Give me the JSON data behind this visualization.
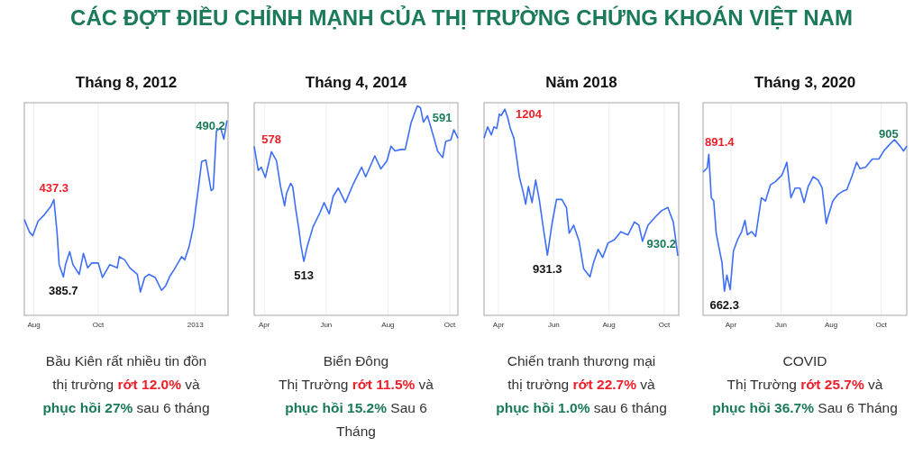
{
  "chart_data": [
    {
      "type": "other",
      "title": "CÁC ĐỢT ĐIỀU CHỈNH MẠNH CỦA THỊ TRƯỜNG CHỨNG KHOÁN VIỆT NAM"
    },
    {
      "type": "line",
      "title": "Tháng 8, 2012",
      "color": "#3d6ef5",
      "grid": "x",
      "tick_labels": "x",
      "xlim": [
        "2012-07-23",
        "2013-02-01"
      ],
      "ylim": [
        360,
        502
      ],
      "xticks": [
        {
          "value": "2012-08-01",
          "label": "Aug"
        },
        {
          "value": "2012-10-01",
          "label": "Oct"
        },
        {
          "value": "2013-01-01",
          "label": "2013"
        }
      ],
      "x": [
        "2012-07-23",
        "2012-07-28",
        "2012-07-31",
        "2012-08-05",
        "2012-08-11",
        "2012-08-17",
        "2012-08-20",
        "2012-08-23",
        "2012-08-25",
        "2012-08-29",
        "2012-08-31",
        "2012-09-04",
        "2012-09-07",
        "2012-09-13",
        "2012-09-17",
        "2012-09-21",
        "2012-09-25",
        "2012-10-01",
        "2012-10-05",
        "2012-10-12",
        "2012-10-19",
        "2012-10-21",
        "2012-10-26",
        "2012-10-31",
        "2012-11-07",
        "2012-11-10",
        "2012-11-14",
        "2012-11-18",
        "2012-11-24",
        "2012-11-30",
        "2012-12-04",
        "2012-12-08",
        "2012-12-12",
        "2012-12-19",
        "2012-12-22",
        "2012-12-26",
        "2012-12-30",
        "2013-01-04",
        "2013-01-07",
        "2013-01-11",
        "2013-01-16",
        "2013-01-18",
        "2013-01-21",
        "2013-01-25",
        "2013-01-28",
        "2013-01-31"
      ],
      "values": [
        424.0,
        415.4,
        413.2,
        422.9,
        427.2,
        432.6,
        437.3,
        415.4,
        393.9,
        385.7,
        393.9,
        402.5,
        393.9,
        387.4,
        401.4,
        391.7,
        395.0,
        395.0,
        385.3,
        393.9,
        391.7,
        399.2,
        397.1,
        391.7,
        387.4,
        375.6,
        385.3,
        387.4,
        385.3,
        376.7,
        379.9,
        386.3,
        390.6,
        399.2,
        397.1,
        405.7,
        418.6,
        445.5,
        462.7,
        463.7,
        443.3,
        444.4,
        483.1,
        485.2,
        477.7,
        490.2
      ],
      "value_labels": [
        null,
        null,
        null,
        null,
        null,
        null,
        "437.3",
        null,
        null,
        "385.7",
        null,
        null,
        null,
        null,
        null,
        null,
        null,
        null,
        null,
        null,
        null,
        null,
        null,
        null,
        null,
        null,
        null,
        null,
        null,
        null,
        null,
        null,
        null,
        null,
        null,
        null,
        null,
        null,
        null,
        null,
        null,
        null,
        null,
        null,
        null,
        "490.2"
      ],
      "annotations": [
        "Bầu Kiên rất nhiều tin đồn\nthị trường ",
        "rớt 12.0%",
        " và\n",
        "phục hồi 27%",
        " sau 6 tháng"
      ]
    },
    {
      "type": "line",
      "title": "Tháng 4, 2014",
      "color": "#3d6ef5",
      "grid": "x",
      "tick_labels": "x",
      "xlim": [
        "2014-03-22",
        "2014-10-09"
      ],
      "ylim": [
        481,
        607
      ],
      "xticks": [
        {
          "value": "2014-04-01",
          "label": "Apr"
        },
        {
          "value": "2014-06-01",
          "label": "Jun"
        },
        {
          "value": "2014-08-01",
          "label": "Aug"
        },
        {
          "value": "2014-10-01",
          "label": "Oct"
        }
      ],
      "x": [
        "2014-03-22",
        "2014-03-26",
        "2014-03-29",
        "2014-04-02",
        "2014-04-08",
        "2014-04-13",
        "2014-04-17",
        "2014-04-21",
        "2014-04-23",
        "2014-04-27",
        "2014-04-29",
        "2014-05-02",
        "2014-05-05",
        "2014-05-07",
        "2014-05-10",
        "2014-05-13",
        "2014-05-19",
        "2014-05-26",
        "2014-05-30",
        "2014-06-04",
        "2014-06-08",
        "2014-06-13",
        "2014-06-20",
        "2014-06-28",
        "2014-07-06",
        "2014-07-10",
        "2014-07-19",
        "2014-07-25",
        "2014-07-31",
        "2014-08-04",
        "2014-08-08",
        "2014-08-14",
        "2014-08-18",
        "2014-08-24",
        "2014-08-30",
        "2014-09-02",
        "2014-09-05",
        "2014-09-09",
        "2014-09-15",
        "2014-09-19",
        "2014-09-24",
        "2014-09-27",
        "2014-10-02",
        "2014-10-05",
        "2014-10-09"
      ],
      "values": [
        581.2,
        566.9,
        568.8,
        562.7,
        578,
        572.6,
        557.3,
        545.9,
        553.5,
        559.2,
        557.3,
        543.9,
        532.5,
        522.9,
        513,
        521.0,
        533.4,
        542.0,
        547.8,
        541.1,
        551.6,
        556.4,
        547.8,
        559.2,
        568.8,
        563.1,
        575.5,
        567.8,
        572.6,
        581.2,
        578.4,
        579.3,
        579.3,
        595.5,
        605.1,
        604.1,
        595.5,
        599.3,
        586.9,
        578.3,
        574.5,
        584.1,
        585.0,
        591,
        586.0
      ],
      "value_labels": [
        null,
        null,
        null,
        null,
        "578",
        null,
        null,
        null,
        null,
        null,
        null,
        null,
        null,
        null,
        "513",
        null,
        null,
        null,
        null,
        null,
        null,
        null,
        null,
        null,
        null,
        null,
        null,
        null,
        null,
        null,
        null,
        null,
        null,
        null,
        null,
        null,
        null,
        null,
        null,
        null,
        null,
        null,
        null,
        "591",
        null
      ],
      "annotations": [
        "Biển Đông\nThị Trường ",
        "rớt 11.5%",
        " và\n",
        "phục hồi 15.2%",
        " Sau 6\nTháng"
      ]
    },
    {
      "type": "line",
      "title": "Năm 2018",
      "color": "#3d6ef5",
      "grid": "x",
      "tick_labels": "x",
      "xlim": [
        "2018-03-16",
        "2018-10-17"
      ],
      "ylim": [
        819,
        1216
      ],
      "xticks": [
        {
          "value": "2018-04-01",
          "label": "Apr"
        },
        {
          "value": "2018-06-01",
          "label": "Jun"
        },
        {
          "value": "2018-08-01",
          "label": "Aug"
        },
        {
          "value": "2018-10-01",
          "label": "Oct"
        }
      ],
      "x": [
        "2018-03-16",
        "2018-03-20",
        "2018-03-24",
        "2018-03-27",
        "2018-03-30",
        "2018-04-02",
        "2018-04-04",
        "2018-04-08",
        "2018-04-11",
        "2018-04-14",
        "2018-04-18",
        "2018-04-21",
        "2018-04-24",
        "2018-04-28",
        "2018-05-01",
        "2018-05-04",
        "2018-05-08",
        "2018-05-12",
        "2018-05-16",
        "2018-05-20",
        "2018-05-25",
        "2018-05-30",
        "2018-06-04",
        "2018-06-10",
        "2018-06-15",
        "2018-06-18",
        "2018-06-23",
        "2018-06-29",
        "2018-07-04",
        "2018-07-11",
        "2018-07-15",
        "2018-07-20",
        "2018-07-25",
        "2018-07-31",
        "2018-08-07",
        "2018-08-14",
        "2018-08-22",
        "2018-08-29",
        "2018-09-03",
        "2018-09-07",
        "2018-09-13",
        "2018-09-21",
        "2018-09-28",
        "2018-10-05",
        "2018-10-11",
        "2018-10-16"
      ],
      "values": [
        1149.8,
        1170.9,
        1155.8,
        1170.9,
        1167.9,
        1195.0,
        1192.0,
        1204,
        1189.0,
        1167.9,
        1149.8,
        1113.7,
        1077.6,
        1050.5,
        1026.4,
        1059.5,
        1029.4,
        1071.6,
        1035.4,
        987.3,
        931.3,
        989.3,
        1035.4,
        1035.4,
        1020.4,
        972.2,
        987.3,
        957.2,
        906.0,
        891.0,
        918.0,
        942.1,
        927.1,
        954.2,
        960.2,
        975.2,
        969.2,
        993.3,
        987.3,
        957.2,
        987.3,
        1002.3,
        1014.4,
        1020.4,
        993.3,
        930.2
      ],
      "value_labels": [
        null,
        null,
        null,
        null,
        null,
        null,
        null,
        "1204",
        null,
        null,
        null,
        null,
        null,
        null,
        null,
        null,
        null,
        null,
        null,
        null,
        "931.3",
        null,
        null,
        null,
        null,
        null,
        null,
        null,
        null,
        null,
        null,
        null,
        null,
        null,
        null,
        null,
        null,
        null,
        null,
        null,
        null,
        null,
        null,
        null,
        null,
        "930.2"
      ],
      "annotations": [
        "Chiến tranh thương mại\nthị trường ",
        "rớt 22.7%",
        " và\n",
        "phục hồi 1.0%",
        " sau 6 tháng"
      ]
    },
    {
      "type": "line",
      "title": "Tháng 3, 2020",
      "color": "#3d6ef5",
      "grid": "x",
      "tick_labels": "x",
      "xlim": [
        "2020-02-27",
        "2020-11-01"
      ],
      "ylim": [
        622,
        978
      ],
      "xticks": [
        {
          "value": "2020-04-01",
          "label": "Apr"
        },
        {
          "value": "2020-06-01",
          "label": "Jun"
        },
        {
          "value": "2020-08-01",
          "label": "Aug"
        },
        {
          "value": "2020-10-01",
          "label": "Oct"
        }
      ],
      "x": [
        "2020-02-27",
        "2020-03-03",
        "2020-03-05",
        "2020-03-08",
        "2020-03-11",
        "2020-03-14",
        "2020-03-17",
        "2020-03-21",
        "2020-03-24",
        "2020-03-27",
        "2020-03-31",
        "2020-04-04",
        "2020-04-09",
        "2020-04-14",
        "2020-04-18",
        "2020-04-21",
        "2020-04-26",
        "2020-05-01",
        "2020-05-08",
        "2020-05-13",
        "2020-05-19",
        "2020-05-25",
        "2020-06-02",
        "2020-06-08",
        "2020-06-13",
        "2020-06-18",
        "2020-06-24",
        "2020-06-29",
        "2020-07-04",
        "2020-07-10",
        "2020-07-16",
        "2020-07-21",
        "2020-07-26",
        "2020-07-28",
        "2020-08-03",
        "2020-08-09",
        "2020-08-15",
        "2020-08-20",
        "2020-08-26",
        "2020-09-01",
        "2020-09-05",
        "2020-09-12",
        "2020-09-20",
        "2020-09-28",
        "2020-10-04",
        "2020-10-11",
        "2020-10-17",
        "2020-10-24",
        "2020-10-28",
        "2020-11-01"
      ],
      "values": [
        862.1,
        868.6,
        891.4,
        818.9,
        813.5,
        759.5,
        737.9,
        710.9,
        662.3,
        689.3,
        665.0,
        729.8,
        748.7,
        762.2,
        781.1,
        756.8,
        762.2,
        754.1,
        818.9,
        813.5,
        840.5,
        845.9,
        856.7,
        878.3,
        818.9,
        835.1,
        835.1,
        810.8,
        837.8,
        854.0,
        848.6,
        835.1,
        775.7,
        786.5,
        813.5,
        824.3,
        829.7,
        832.4,
        854.0,
        878.3,
        867.5,
        870.2,
        883.7,
        883.7,
        897.2,
        908.0,
        916.1,
        905,
        897.2,
        905.3
      ],
      "value_labels": [
        null,
        null,
        "891.4",
        null,
        null,
        null,
        null,
        null,
        "662.3",
        null,
        null,
        null,
        null,
        null,
        null,
        null,
        null,
        null,
        null,
        null,
        null,
        null,
        null,
        null,
        null,
        null,
        null,
        null,
        null,
        null,
        null,
        null,
        null,
        null,
        null,
        null,
        null,
        null,
        null,
        null,
        null,
        null,
        null,
        null,
        null,
        null,
        null,
        "905",
        null,
        null
      ],
      "annotations": [
        "COVID\nThị Trường ",
        "rớt 25.7%",
        " và\n",
        "phục hồi 36.7%",
        " Sau 6 Tháng"
      ]
    }
  ]
}
